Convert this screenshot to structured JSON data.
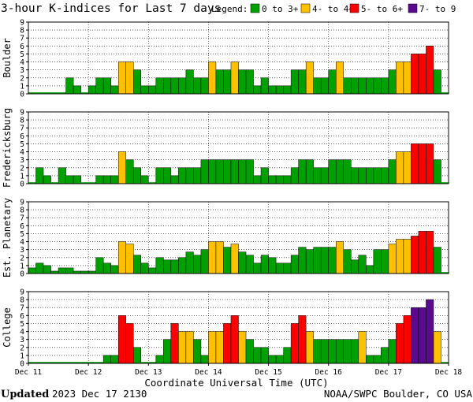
{
  "chart_data": {
    "type": "bar",
    "title": "3-hour K-indices for Last 7 days",
    "legend": {
      "label": "Legend:",
      "entries": [
        {
          "name": "0 to 3+",
          "color": "#00a000"
        },
        {
          "name": "4- to 4+",
          "color": "#ffc000"
        },
        {
          "name": "5- to 6+",
          "color": "#ff0000"
        },
        {
          "name": "7- to 9",
          "color": "#5a0a8c"
        }
      ]
    },
    "xlabel": "Coordinate Universal Time (UTC)",
    "x_tick_labels": [
      "Dec 11",
      "Dec 12",
      "Dec 13",
      "Dec 14",
      "Dec 15",
      "Dec 16",
      "Dec 17",
      "Dec 18"
    ],
    "y_tick_labels": [
      "0",
      "1",
      "2",
      "3",
      "4",
      "5",
      "6",
      "7",
      "8",
      "9"
    ],
    "ylim": [
      0,
      9
    ],
    "grid": true,
    "bars_per_day": 8,
    "panels": [
      {
        "name": "Boulder",
        "values": [
          0,
          0,
          0,
          0,
          0,
          2,
          1,
          0,
          1,
          2,
          2,
          1,
          4,
          4,
          3,
          1,
          1,
          2,
          2,
          2,
          2,
          3,
          2,
          2,
          4,
          3,
          3,
          4,
          3,
          3,
          1,
          2,
          1,
          1,
          1,
          3,
          3,
          4,
          2,
          2,
          3,
          4,
          2,
          2,
          2,
          2,
          2,
          2,
          3,
          4,
          4,
          5,
          5,
          6,
          3,
          0
        ]
      },
      {
        "name": "Fredericksburg",
        "values": [
          0,
          2,
          1,
          0,
          2,
          1,
          1,
          0,
          0,
          1,
          1,
          1,
          4,
          3,
          2,
          1,
          0,
          2,
          2,
          1,
          2,
          2,
          2,
          3,
          3,
          3,
          3,
          3,
          3,
          3,
          1,
          2,
          1,
          1,
          1,
          2,
          3,
          3,
          2,
          2,
          3,
          3,
          3,
          2,
          2,
          2,
          2,
          2,
          3,
          4,
          4,
          5,
          5,
          5,
          3,
          0
        ]
      },
      {
        "name": "Est. Planetary",
        "values": [
          0.7,
          1.3,
          1,
          0.3,
          0.7,
          0.7,
          0.3,
          0.3,
          0.3,
          2,
          1.3,
          1,
          4,
          3.7,
          2.3,
          1.3,
          0.7,
          2,
          1.7,
          1.7,
          2,
          2.7,
          2.3,
          3,
          4,
          4,
          3.3,
          3.7,
          2.7,
          2.3,
          1.3,
          2.3,
          2,
          1.3,
          1.3,
          2.3,
          3.3,
          3,
          3.3,
          3.3,
          3.3,
          4,
          3,
          1.7,
          2.3,
          1,
          3,
          3,
          3.7,
          4.3,
          4.3,
          4.7,
          5.3,
          5.3,
          3.3,
          0
        ]
      },
      {
        "name": "College",
        "values": [
          0,
          0,
          0,
          0,
          0,
          0,
          0,
          0,
          0,
          0,
          1,
          1,
          6,
          5,
          2,
          0,
          0,
          1,
          3,
          5,
          4,
          4,
          3,
          1,
          4,
          4,
          5,
          6,
          4,
          3,
          2,
          2,
          1,
          1,
          2,
          5,
          6,
          4,
          3,
          3,
          3,
          3,
          3,
          3,
          4,
          1,
          1,
          2,
          3,
          5,
          6,
          7,
          7,
          8,
          4,
          0
        ]
      }
    ],
    "footer": {
      "updated_label": "Updated",
      "updated_value": "2023 Dec 17 2130",
      "credit": "NOAA/SWPC Boulder, CO USA"
    }
  }
}
